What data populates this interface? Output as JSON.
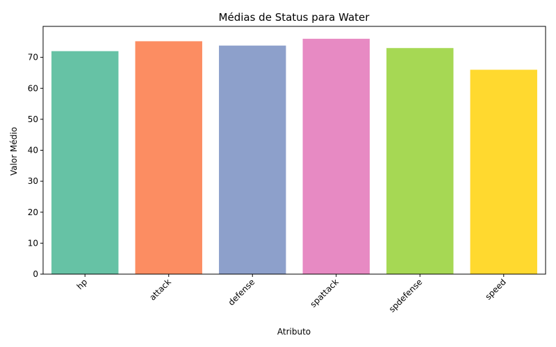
{
  "chart_data": {
    "type": "bar",
    "title": "Médias de Status para Water",
    "xlabel": "Atributo",
    "ylabel": "Valor Médio",
    "categories": [
      "hp",
      "attack",
      "defense",
      "spattack",
      "spdefense",
      "speed"
    ],
    "values": [
      72.0,
      75.2,
      73.8,
      76.0,
      73.0,
      66.0
    ],
    "colors": [
      "#66c2a5",
      "#fc8d62",
      "#8da0cb",
      "#e78ac3",
      "#a6d854",
      "#ffd92f"
    ],
    "ylim": [
      0,
      80
    ],
    "yticks": [
      0,
      10,
      20,
      30,
      40,
      50,
      60,
      70
    ],
    "grid": false,
    "legend": "none"
  }
}
